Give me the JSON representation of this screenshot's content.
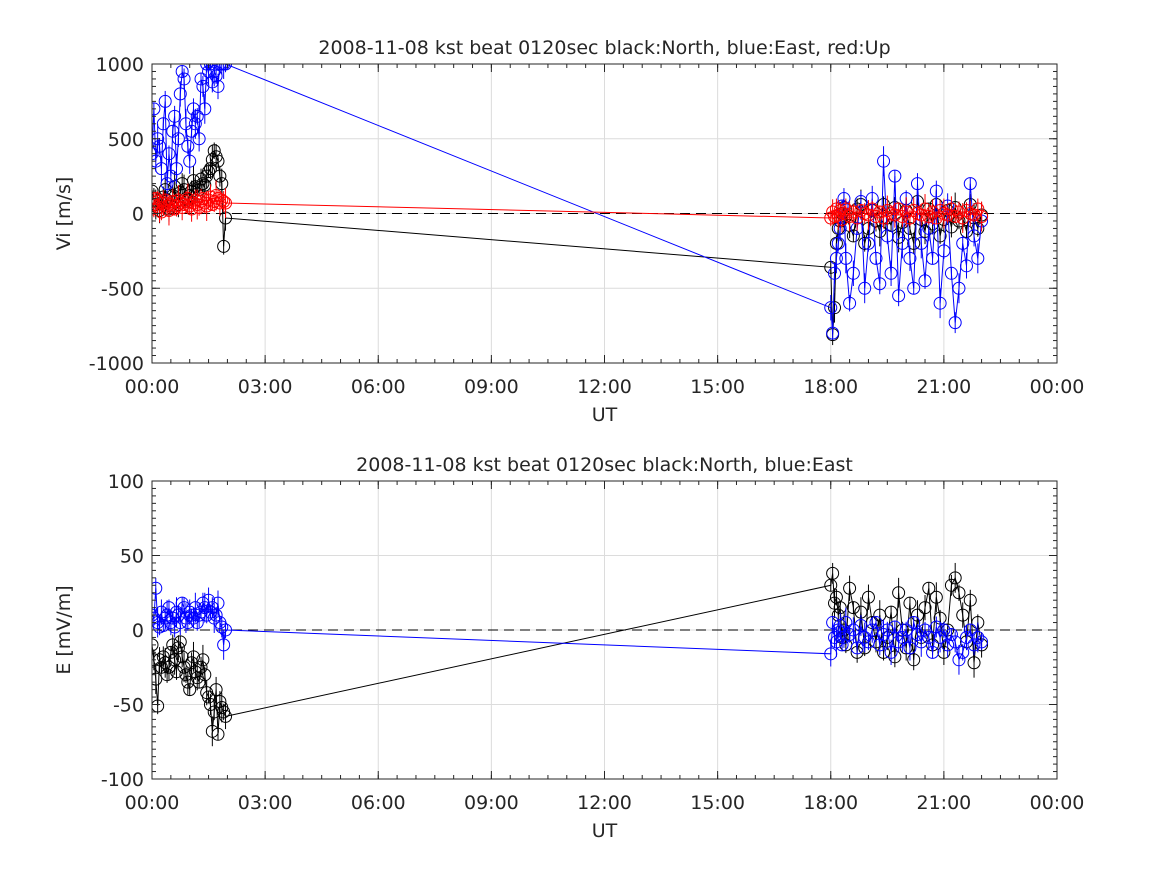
{
  "chart_data": [
    {
      "type": "scatter",
      "title": "2008-11-08 kst beat 0120sec black:North, blue:East, red:Up",
      "xlabel": "UT",
      "ylabel": "Vi [m/s]",
      "x_unit": "hours UT",
      "xlim": [
        0,
        24
      ],
      "ylim": [
        -1000,
        1000
      ],
      "xtick_labels": [
        "00:00",
        "03:00",
        "06:00",
        "09:00",
        "12:00",
        "15:00",
        "18:00",
        "21:00",
        "00:00"
      ],
      "ytick_labels": [
        "1000",
        "500",
        "0",
        "-500",
        "-1000"
      ],
      "yticks": [
        1000,
        500,
        0,
        -500,
        -1000
      ],
      "grid": true,
      "zero_line": "dashed",
      "series": [
        {
          "color": "#000000",
          "x": [
            0.0,
            0.05,
            0.1,
            0.15,
            0.2,
            0.25,
            0.3,
            0.35,
            0.4,
            0.45,
            0.5,
            0.55,
            0.6,
            0.65,
            0.7,
            0.75,
            0.8,
            0.85,
            0.9,
            0.95,
            1.0,
            1.05,
            1.1,
            1.15,
            1.2,
            1.25,
            1.3,
            1.35,
            1.4,
            1.45,
            1.5,
            1.55,
            1.6,
            1.65,
            1.7,
            1.75,
            1.8,
            1.85,
            1.9,
            1.95,
            18.0,
            18.05,
            18.1,
            18.15,
            18.2,
            18.25,
            18.3,
            18.35,
            18.4,
            18.5,
            18.6,
            18.7,
            18.8,
            18.9,
            19.0,
            19.1,
            19.2,
            19.3,
            19.4,
            19.5,
            19.6,
            19.7,
            19.8,
            19.9,
            20.0,
            20.1,
            20.2,
            20.3,
            20.4,
            20.5,
            20.6,
            20.7,
            20.8,
            20.9,
            21.0,
            21.1,
            21.2,
            21.3,
            21.4,
            21.5,
            21.6,
            21.7,
            21.8,
            21.9,
            22.0
          ],
          "y": [
            150,
            100,
            60,
            40,
            20,
            70,
            110,
            160,
            90,
            30,
            50,
            120,
            180,
            80,
            60,
            140,
            200,
            160,
            100,
            90,
            120,
            150,
            220,
            180,
            130,
            160,
            230,
            200,
            190,
            250,
            280,
            300,
            360,
            420,
            380,
            350,
            250,
            200,
            -220,
            -30,
            -360,
            -810,
            -630,
            -200,
            -100,
            -50,
            0,
            40,
            -20,
            -80,
            -150,
            30,
            60,
            -200,
            -100,
            20,
            -50,
            -120,
            60,
            -30,
            -80,
            40,
            -160,
            -60,
            20,
            -100,
            -200,
            80,
            -40,
            -120,
            30,
            -70,
            60,
            -150,
            -40,
            20,
            -90,
            40,
            -50,
            -30,
            -120,
            60,
            -30,
            -100,
            -10
          ],
          "error_bars": true
        },
        {
          "color": "#0000ff",
          "x": [
            0.0,
            0.05,
            0.1,
            0.15,
            0.2,
            0.25,
            0.3,
            0.35,
            0.4,
            0.45,
            0.5,
            0.55,
            0.6,
            0.65,
            0.7,
            0.75,
            0.8,
            0.85,
            0.9,
            0.95,
            1.0,
            1.05,
            1.1,
            1.15,
            1.2,
            1.25,
            1.3,
            1.35,
            1.4,
            1.45,
            1.5,
            1.55,
            1.6,
            1.65,
            1.7,
            1.75,
            1.8,
            1.85,
            1.9,
            1.95,
            18.0,
            18.05,
            18.1,
            18.15,
            18.2,
            18.25,
            18.3,
            18.35,
            18.4,
            18.5,
            18.6,
            18.7,
            18.8,
            18.9,
            19.0,
            19.1,
            19.2,
            19.3,
            19.4,
            19.5,
            19.6,
            19.7,
            19.8,
            19.9,
            20.0,
            20.1,
            20.2,
            20.3,
            20.4,
            20.5,
            20.6,
            20.7,
            20.8,
            20.9,
            21.0,
            21.1,
            21.2,
            21.3,
            21.4,
            21.5,
            21.6,
            21.7,
            21.8,
            21.9,
            22.0
          ],
          "y": [
            400,
            700,
            350,
            500,
            450,
            300,
            600,
            750,
            200,
            400,
            250,
            550,
            650,
            300,
            500,
            800,
            950,
            900,
            600,
            450,
            350,
            550,
            700,
            600,
            650,
            500,
            900,
            850,
            700,
            1000,
            950,
            1000,
            880,
            950,
            920,
            850,
            1000,
            1000,
            1000,
            1000,
            -630,
            -800,
            -400,
            -300,
            -200,
            -100,
            50,
            100,
            -300,
            -600,
            -400,
            -100,
            80,
            -500,
            -200,
            100,
            -300,
            -470,
            350,
            -150,
            -400,
            250,
            -550,
            -200,
            100,
            -300,
            -500,
            200,
            -200,
            -450,
            -100,
            -300,
            150,
            -600,
            -250,
            50,
            -400,
            -730,
            -500,
            -200,
            -350,
            200,
            -150,
            -300,
            -50
          ],
          "error_bars": true
        },
        {
          "color": "#ff0000",
          "x": [
            0.0,
            0.05,
            0.1,
            0.15,
            0.2,
            0.25,
            0.3,
            0.35,
            0.4,
            0.45,
            0.5,
            0.55,
            0.6,
            0.65,
            0.7,
            0.75,
            0.8,
            0.85,
            0.9,
            0.95,
            1.0,
            1.05,
            1.1,
            1.15,
            1.2,
            1.25,
            1.3,
            1.35,
            1.4,
            1.45,
            1.5,
            1.55,
            1.6,
            1.65,
            1.7,
            1.75,
            1.8,
            1.85,
            1.9,
            1.95,
            18.0,
            18.05,
            18.1,
            18.15,
            18.2,
            18.25,
            18.3,
            18.35,
            18.4,
            18.5,
            18.6,
            18.7,
            18.8,
            18.9,
            19.0,
            19.1,
            19.2,
            19.3,
            19.4,
            19.5,
            19.6,
            19.7,
            19.8,
            19.9,
            20.0,
            20.1,
            20.2,
            20.3,
            20.4,
            20.5,
            20.6,
            20.7,
            20.8,
            20.9,
            21.0,
            21.1,
            21.2,
            21.3,
            21.4,
            21.5,
            21.6,
            21.7,
            21.8,
            21.9,
            22.0
          ],
          "y": [
            30,
            60,
            100,
            80,
            40,
            10,
            70,
            90,
            50,
            20,
            60,
            80,
            30,
            50,
            90,
            70,
            40,
            60,
            80,
            100,
            50,
            30,
            70,
            90,
            60,
            40,
            80,
            100,
            70,
            50,
            90,
            110,
            60,
            80,
            120,
            100,
            70,
            90,
            80,
            70,
            -30,
            10,
            -20,
            30,
            -10,
            20,
            -40,
            0,
            30,
            -20,
            10,
            -30,
            20,
            0,
            -10,
            30,
            -20,
            10,
            -30,
            20,
            0,
            -10,
            30,
            -20,
            10,
            -30,
            20,
            0,
            -10,
            30,
            -20,
            10,
            -30,
            20,
            0,
            -10,
            30,
            -20,
            10,
            -30,
            20,
            0,
            -10,
            30,
            -20
          ],
          "error_bars": true
        }
      ]
    },
    {
      "type": "scatter",
      "title": "2008-11-08 kst beat 0120sec black:North, blue:East",
      "xlabel": "UT",
      "ylabel": "E [mV/m]",
      "x_unit": "hours UT",
      "xlim": [
        0,
        24
      ],
      "ylim": [
        -100,
        100
      ],
      "xtick_labels": [
        "00:00",
        "03:00",
        "06:00",
        "09:00",
        "12:00",
        "15:00",
        "18:00",
        "21:00",
        "00:00"
      ],
      "ytick_labels": [
        "100",
        "50",
        "0",
        "-50",
        "-100"
      ],
      "yticks": [
        100,
        50,
        0,
        -50,
        -100
      ],
      "grid": true,
      "zero_line": "dashed",
      "series": [
        {
          "color": "#000000",
          "x": [
            0.0,
            0.05,
            0.1,
            0.15,
            0.2,
            0.25,
            0.3,
            0.35,
            0.4,
            0.45,
            0.5,
            0.55,
            0.6,
            0.65,
            0.7,
            0.75,
            0.8,
            0.85,
            0.9,
            0.95,
            1.0,
            1.05,
            1.1,
            1.15,
            1.2,
            1.25,
            1.3,
            1.35,
            1.4,
            1.45,
            1.5,
            1.55,
            1.6,
            1.65,
            1.7,
            1.75,
            1.8,
            1.85,
            1.9,
            1.95,
            18.0,
            18.05,
            18.1,
            18.15,
            18.2,
            18.25,
            18.3,
            18.35,
            18.4,
            18.5,
            18.6,
            18.7,
            18.8,
            18.9,
            19.0,
            19.1,
            19.2,
            19.3,
            19.4,
            19.5,
            19.6,
            19.7,
            19.8,
            19.9,
            20.0,
            20.1,
            20.2,
            20.3,
            20.4,
            20.5,
            20.6,
            20.7,
            20.8,
            20.9,
            21.0,
            21.1,
            21.2,
            21.3,
            21.4,
            21.5,
            21.6,
            21.7,
            21.8,
            21.9,
            22.0
          ],
          "y": [
            -10,
            -20,
            -33,
            -51,
            -20,
            -25,
            -18,
            -22,
            -30,
            -25,
            -15,
            -10,
            -20,
            -28,
            -12,
            -8,
            -18,
            -25,
            -30,
            -35,
            -40,
            -22,
            -18,
            -28,
            -32,
            -35,
            -25,
            -20,
            -30,
            -42,
            -45,
            -50,
            -68,
            -55,
            -40,
            -70,
            -48,
            -52,
            -55,
            -58,
            30,
            38,
            18,
            22,
            10,
            15,
            -5,
            0,
            -10,
            28,
            15,
            -15,
            12,
            -12,
            22,
            5,
            -8,
            10,
            -15,
            -5,
            12,
            -18,
            25,
            0,
            -12,
            18,
            -20,
            10,
            -5,
            15,
            28,
            -10,
            22,
            8,
            -15,
            0,
            30,
            35,
            25,
            10,
            -8,
            20,
            -22,
            5,
            -10
          ],
          "error_bars": true
        },
        {
          "color": "#0000ff",
          "x": [
            0.0,
            0.05,
            0.1,
            0.15,
            0.2,
            0.25,
            0.3,
            0.35,
            0.4,
            0.45,
            0.5,
            0.55,
            0.6,
            0.65,
            0.7,
            0.75,
            0.8,
            0.85,
            0.9,
            0.95,
            1.0,
            1.05,
            1.1,
            1.15,
            1.2,
            1.25,
            1.3,
            1.35,
            1.4,
            1.45,
            1.5,
            1.55,
            1.6,
            1.65,
            1.7,
            1.75,
            1.8,
            1.85,
            1.9,
            1.95,
            18.0,
            18.05,
            18.1,
            18.15,
            18.2,
            18.25,
            18.3,
            18.35,
            18.4,
            18.5,
            18.6,
            18.7,
            18.8,
            18.9,
            19.0,
            19.1,
            19.2,
            19.3,
            19.4,
            19.5,
            19.6,
            19.7,
            19.8,
            19.9,
            20.0,
            20.1,
            20.2,
            20.3,
            20.4,
            20.5,
            20.6,
            20.7,
            20.8,
            20.9,
            21.0,
            21.1,
            21.2,
            21.3,
            21.4,
            21.5,
            21.6,
            21.7,
            21.8,
            21.9,
            22.0
          ],
          "y": [
            10,
            8,
            28,
            5,
            2,
            12,
            3,
            8,
            10,
            15,
            5,
            8,
            2,
            12,
            10,
            5,
            18,
            15,
            8,
            5,
            12,
            10,
            8,
            15,
            5,
            10,
            12,
            18,
            15,
            10,
            20,
            12,
            15,
            8,
            10,
            18,
            5,
            2,
            -10,
            0,
            -16,
            5,
            -5,
            -8,
            0,
            3,
            -10,
            -5,
            5,
            -3,
            0,
            -12,
            3,
            -5,
            -8,
            0,
            5,
            -10,
            -3,
            0,
            -15,
            2,
            -8,
            -5,
            0,
            -12,
            5,
            -3,
            -8,
            0,
            -5,
            -15,
            2,
            -5,
            0,
            -10,
            -3,
            -8,
            -20,
            -15,
            -5,
            0,
            -10,
            -5,
            -8
          ],
          "error_bars": true
        }
      ]
    }
  ]
}
